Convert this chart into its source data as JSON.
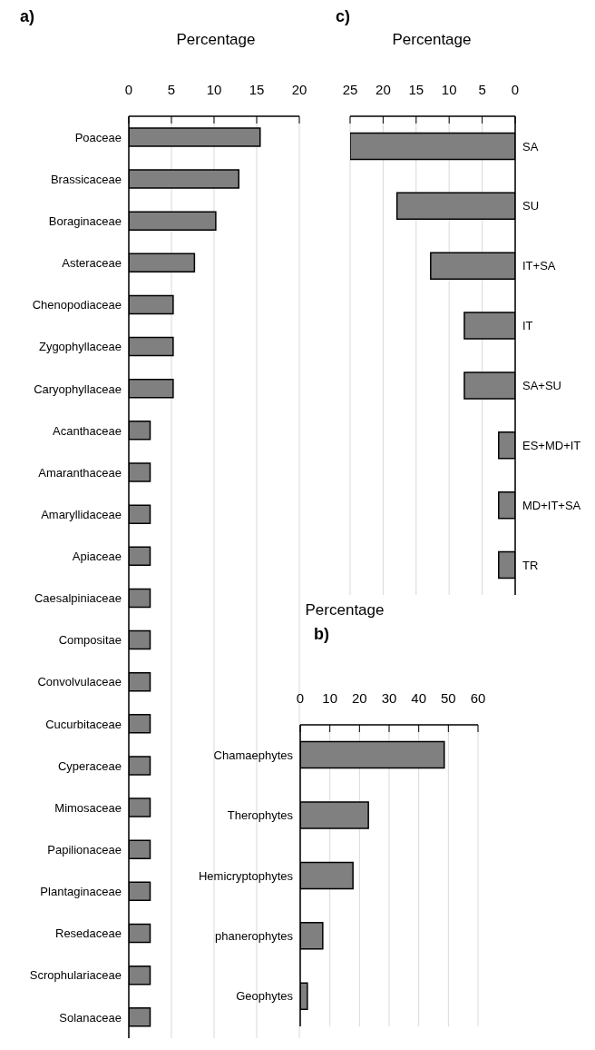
{
  "chart_data": [
    {
      "type": "bar",
      "orientation": "horizontal",
      "title": "a)",
      "xlabel": "Percentage",
      "categories": [
        "Poaceae",
        "Brassicaceae",
        "Boraginaceae",
        "Asteraceae",
        "Chenopodiaceae",
        "Zygophyllaceae",
        "Caryophyllaceae",
        "Acanthaceae",
        "Amaranthaceae",
        "Amaryllidaceae",
        "Apiaceae",
        "Caesalpiniaceae",
        "Compositae",
        "Convolvulaceae",
        "Cucurbitaceae",
        "Cyperaceae",
        "Mimosaceae",
        "Papilionaceae",
        "Plantaginaceae",
        "Resedaceae",
        "Scrophulariaceae",
        "Solanaceae"
      ],
      "values": [
        15.4,
        12.9,
        10.2,
        7.7,
        5.2,
        5.2,
        5.2,
        2.5,
        2.5,
        2.5,
        2.5,
        2.5,
        2.5,
        2.5,
        2.5,
        2.5,
        2.5,
        2.5,
        2.5,
        2.5,
        2.5,
        2.5
      ],
      "color": "#808080",
      "xlim": [
        0,
        20
      ],
      "xticks": [
        0,
        5,
        10,
        15,
        20
      ],
      "grid": "x"
    },
    {
      "type": "bar",
      "orientation": "horizontal",
      "title": "c)",
      "xlabel": "Percentage",
      "categories": [
        "SA",
        "SU",
        "IT+SA",
        "IT",
        "SA+SU",
        "ES+MD+IT",
        "MD+IT+SA",
        "TR"
      ],
      "values": [
        25,
        17.9,
        12.8,
        7.7,
        7.7,
        2.5,
        2.5,
        2.5
      ],
      "color": "#808080",
      "xlim": [
        25,
        0
      ],
      "xticks": [
        25,
        20,
        15,
        10,
        5,
        0
      ],
      "grid": "x"
    },
    {
      "type": "bar",
      "orientation": "horizontal",
      "title": "b)",
      "xlabel": "Percentage",
      "categories": [
        "Chamaephytes",
        "Therophytes",
        "Hemicryptophytes",
        "phanerophytes",
        "Geophytes"
      ],
      "values": [
        48.6,
        23.0,
        17.8,
        7.6,
        2.4
      ],
      "color": "#808080",
      "xlim": [
        0,
        60
      ],
      "xticks": [
        0,
        10,
        20,
        30,
        40,
        50,
        60
      ],
      "grid": "x"
    }
  ]
}
